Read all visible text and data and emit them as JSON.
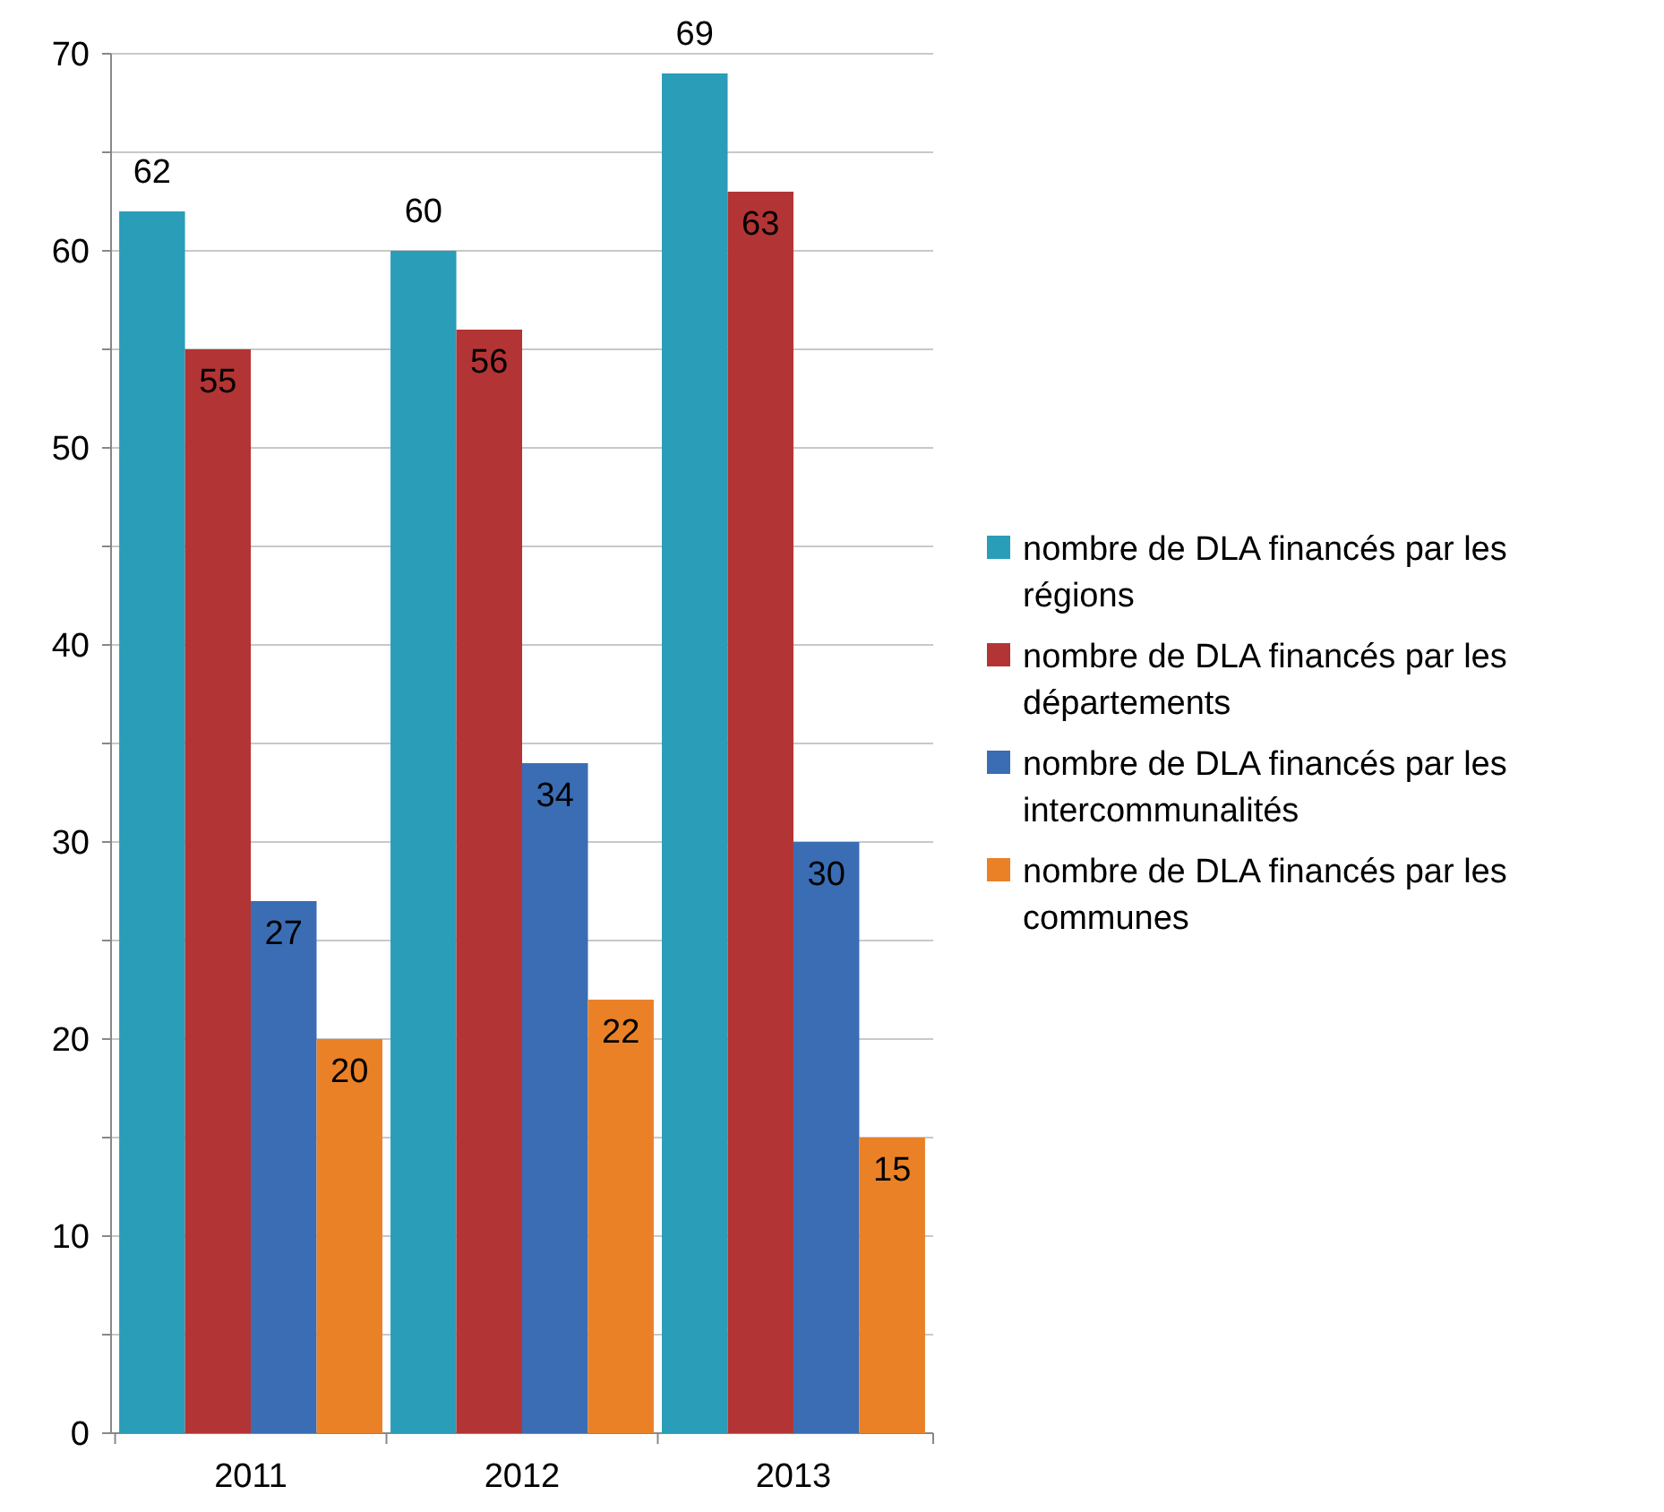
{
  "chart_data": {
    "type": "bar",
    "categories": [
      "2011",
      "2012",
      "2013"
    ],
    "series": [
      {
        "name": "nombre de DLA financés par les régions",
        "color": "#2a9db8",
        "values": [
          62,
          60,
          69
        ]
      },
      {
        "name": "nombre de DLA financés par les départements",
        "color": "#b33434",
        "values": [
          55,
          56,
          63
        ]
      },
      {
        "name": "nombre de DLA financés par les intercommunalités",
        "color": "#3a6db3",
        "values": [
          27,
          34,
          30
        ]
      },
      {
        "name": "nombre de DLA financés par les communes",
        "color": "#ea8127",
        "values": [
          20,
          22,
          15
        ]
      }
    ],
    "ylim": [
      0,
      70
    ],
    "yticks": [
      0,
      {
        "value": 5,
        "label": null
      },
      10,
      {
        "value": 15,
        "label": null
      },
      20,
      {
        "value": 25,
        "label": null
      },
      30,
      {
        "value": 35,
        "label": null
      },
      40,
      {
        "value": 45,
        "label": null
      },
      50,
      {
        "value": 55,
        "label": null
      },
      60,
      {
        "value": 65,
        "label": null
      },
      70
    ],
    "grid": "y",
    "legend": "right",
    "data_labels": true
  }
}
